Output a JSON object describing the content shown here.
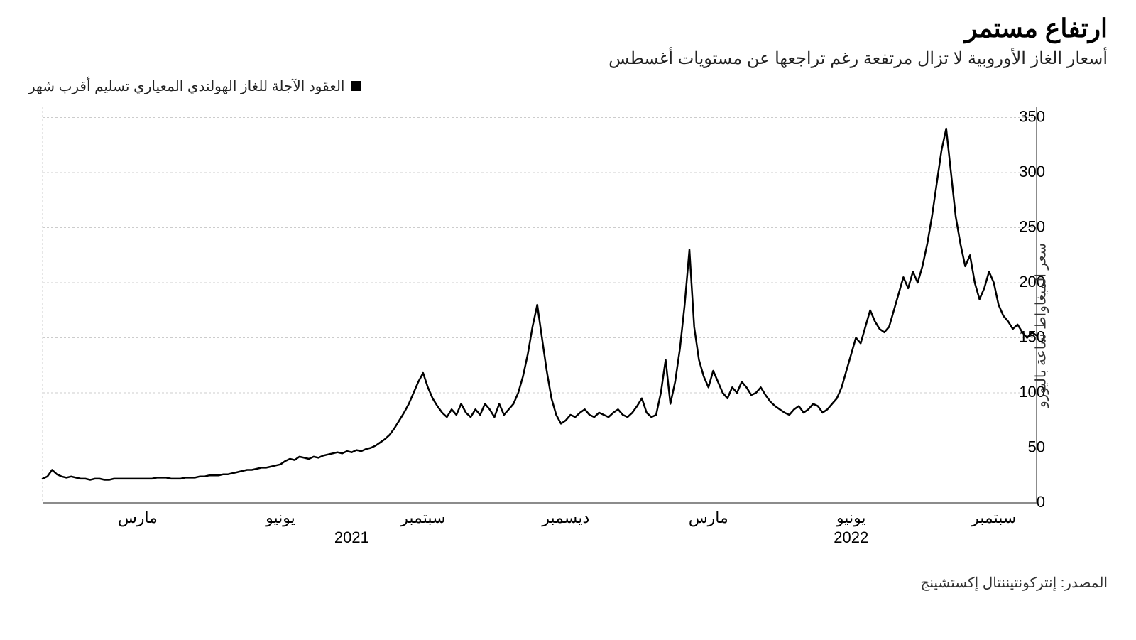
{
  "title": "ارتفاع مستمر",
  "subtitle": "أسعار الغاز الأوروبية لا تزال مرتفعة رغم تراجعها عن مستويات أغسطس",
  "legend_label": "العقود الآجلة للغاز الهولندي المعياري تسليم أقرب شهر",
  "y_axis_title": "سعر الميغاواط ساعة باليورو",
  "source": "المصدر: إنتركونتيننتال إكستشينج",
  "chart": {
    "type": "line",
    "background_color": "#ffffff",
    "grid_color": "#cccccc",
    "grid_dash": "3 3",
    "axis_color": "#666666",
    "line_color": "#000000",
    "line_width": 2.5,
    "ylim": [
      0,
      360
    ],
    "ytick_values": [
      0,
      50,
      100,
      150,
      200,
      250,
      300,
      350
    ],
    "ytick_labels": [
      "0",
      "50",
      "100",
      "150",
      "200",
      "250",
      "300",
      "350"
    ],
    "x_range_n": 210,
    "x_months": [
      {
        "i": 20,
        "label": "مارس"
      },
      {
        "i": 50,
        "label": "يونيو"
      },
      {
        "i": 80,
        "label": "سبتمبر"
      },
      {
        "i": 110,
        "label": "ديسمبر"
      },
      {
        "i": 140,
        "label": "مارس"
      },
      {
        "i": 170,
        "label": "يونيو"
      },
      {
        "i": 200,
        "label": "سبتمبر"
      }
    ],
    "x_years": [
      {
        "i": 65,
        "label": "2021"
      },
      {
        "i": 170,
        "label": "2022"
      }
    ],
    "title_fontsize": 36,
    "subtitle_fontsize": 24,
    "label_fontsize": 20,
    "tick_fontsize": 22,
    "series": [
      [
        0,
        22
      ],
      [
        1,
        24
      ],
      [
        2,
        30
      ],
      [
        3,
        26
      ],
      [
        4,
        24
      ],
      [
        5,
        23
      ],
      [
        6,
        24
      ],
      [
        7,
        23
      ],
      [
        8,
        22
      ],
      [
        9,
        22
      ],
      [
        10,
        21
      ],
      [
        11,
        22
      ],
      [
        12,
        22
      ],
      [
        13,
        21
      ],
      [
        14,
        21
      ],
      [
        15,
        22
      ],
      [
        16,
        22
      ],
      [
        17,
        22
      ],
      [
        18,
        22
      ],
      [
        19,
        22
      ],
      [
        20,
        22
      ],
      [
        21,
        22
      ],
      [
        22,
        22
      ],
      [
        23,
        22
      ],
      [
        24,
        23
      ],
      [
        25,
        23
      ],
      [
        26,
        23
      ],
      [
        27,
        22
      ],
      [
        28,
        22
      ],
      [
        29,
        22
      ],
      [
        30,
        23
      ],
      [
        31,
        23
      ],
      [
        32,
        23
      ],
      [
        33,
        24
      ],
      [
        34,
        24
      ],
      [
        35,
        25
      ],
      [
        36,
        25
      ],
      [
        37,
        25
      ],
      [
        38,
        26
      ],
      [
        39,
        26
      ],
      [
        40,
        27
      ],
      [
        41,
        28
      ],
      [
        42,
        29
      ],
      [
        43,
        30
      ],
      [
        44,
        30
      ],
      [
        45,
        31
      ],
      [
        46,
        32
      ],
      [
        47,
        32
      ],
      [
        48,
        33
      ],
      [
        49,
        34
      ],
      [
        50,
        35
      ],
      [
        51,
        38
      ],
      [
        52,
        40
      ],
      [
        53,
        39
      ],
      [
        54,
        42
      ],
      [
        55,
        41
      ],
      [
        56,
        40
      ],
      [
        57,
        42
      ],
      [
        58,
        41
      ],
      [
        59,
        43
      ],
      [
        60,
        44
      ],
      [
        61,
        45
      ],
      [
        62,
        46
      ],
      [
        63,
        45
      ],
      [
        64,
        47
      ],
      [
        65,
        46
      ],
      [
        66,
        48
      ],
      [
        67,
        47
      ],
      [
        68,
        49
      ],
      [
        69,
        50
      ],
      [
        70,
        52
      ],
      [
        71,
        55
      ],
      [
        72,
        58
      ],
      [
        73,
        62
      ],
      [
        74,
        68
      ],
      [
        75,
        75
      ],
      [
        76,
        82
      ],
      [
        77,
        90
      ],
      [
        78,
        100
      ],
      [
        79,
        110
      ],
      [
        80,
        118
      ],
      [
        81,
        105
      ],
      [
        82,
        95
      ],
      [
        83,
        88
      ],
      [
        84,
        82
      ],
      [
        85,
        78
      ],
      [
        86,
        85
      ],
      [
        87,
        80
      ],
      [
        88,
        90
      ],
      [
        89,
        82
      ],
      [
        90,
        78
      ],
      [
        91,
        85
      ],
      [
        92,
        80
      ],
      [
        93,
        90
      ],
      [
        94,
        85
      ],
      [
        95,
        78
      ],
      [
        96,
        90
      ],
      [
        97,
        80
      ],
      [
        98,
        85
      ],
      [
        99,
        90
      ],
      [
        100,
        100
      ],
      [
        101,
        115
      ],
      [
        102,
        135
      ],
      [
        103,
        160
      ],
      [
        104,
        180
      ],
      [
        105,
        150
      ],
      [
        106,
        120
      ],
      [
        107,
        95
      ],
      [
        108,
        80
      ],
      [
        109,
        72
      ],
      [
        110,
        75
      ],
      [
        111,
        80
      ],
      [
        112,
        78
      ],
      [
        113,
        82
      ],
      [
        114,
        85
      ],
      [
        115,
        80
      ],
      [
        116,
        78
      ],
      [
        117,
        82
      ],
      [
        118,
        80
      ],
      [
        119,
        78
      ],
      [
        120,
        82
      ],
      [
        121,
        85
      ],
      [
        122,
        80
      ],
      [
        123,
        78
      ],
      [
        124,
        82
      ],
      [
        125,
        88
      ],
      [
        126,
        95
      ],
      [
        127,
        82
      ],
      [
        128,
        78
      ],
      [
        129,
        80
      ],
      [
        130,
        100
      ],
      [
        131,
        130
      ],
      [
        132,
        90
      ],
      [
        133,
        110
      ],
      [
        134,
        140
      ],
      [
        135,
        180
      ],
      [
        136,
        230
      ],
      [
        137,
        160
      ],
      [
        138,
        130
      ],
      [
        139,
        115
      ],
      [
        140,
        105
      ],
      [
        141,
        120
      ],
      [
        142,
        110
      ],
      [
        143,
        100
      ],
      [
        144,
        95
      ],
      [
        145,
        105
      ],
      [
        146,
        100
      ],
      [
        147,
        110
      ],
      [
        148,
        105
      ],
      [
        149,
        98
      ],
      [
        150,
        100
      ],
      [
        151,
        105
      ],
      [
        152,
        98
      ],
      [
        153,
        92
      ],
      [
        154,
        88
      ],
      [
        155,
        85
      ],
      [
        156,
        82
      ],
      [
        157,
        80
      ],
      [
        158,
        85
      ],
      [
        159,
        88
      ],
      [
        160,
        82
      ],
      [
        161,
        85
      ],
      [
        162,
        90
      ],
      [
        163,
        88
      ],
      [
        164,
        82
      ],
      [
        165,
        85
      ],
      [
        166,
        90
      ],
      [
        167,
        95
      ],
      [
        168,
        105
      ],
      [
        169,
        120
      ],
      [
        170,
        135
      ],
      [
        171,
        150
      ],
      [
        172,
        145
      ],
      [
        173,
        160
      ],
      [
        174,
        175
      ],
      [
        175,
        165
      ],
      [
        176,
        158
      ],
      [
        177,
        155
      ],
      [
        178,
        160
      ],
      [
        179,
        175
      ],
      [
        180,
        190
      ],
      [
        181,
        205
      ],
      [
        182,
        195
      ],
      [
        183,
        210
      ],
      [
        184,
        200
      ],
      [
        185,
        215
      ],
      [
        186,
        235
      ],
      [
        187,
        260
      ],
      [
        188,
        290
      ],
      [
        189,
        320
      ],
      [
        190,
        340
      ],
      [
        191,
        300
      ],
      [
        192,
        260
      ],
      [
        193,
        235
      ],
      [
        194,
        215
      ],
      [
        195,
        225
      ],
      [
        196,
        200
      ],
      [
        197,
        185
      ],
      [
        198,
        195
      ],
      [
        199,
        210
      ],
      [
        200,
        200
      ],
      [
        201,
        180
      ],
      [
        202,
        170
      ],
      [
        203,
        165
      ],
      [
        204,
        158
      ],
      [
        205,
        162
      ],
      [
        206,
        155
      ],
      [
        207,
        150
      ],
      [
        208,
        155
      ],
      [
        209,
        152
      ]
    ]
  }
}
